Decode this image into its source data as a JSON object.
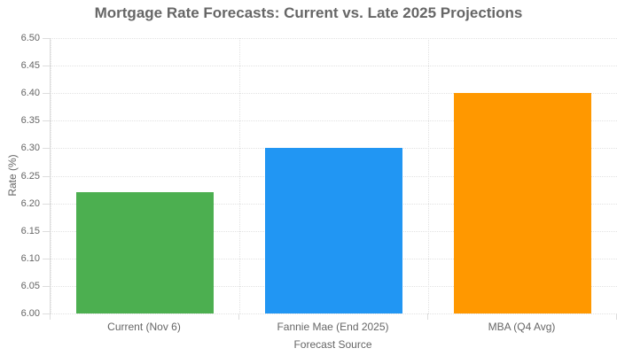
{
  "chart_data": {
    "type": "bar",
    "title": "Mortgage Rate Forecasts: Current vs. Late 2025 Projections",
    "xlabel": "Forecast Source",
    "ylabel": "Rate (%)",
    "categories": [
      "Current (Nov 6)",
      "Fannie Mae (End 2025)",
      "MBA (Q4 Avg)"
    ],
    "values": [
      6.22,
      6.3,
      6.4
    ],
    "bar_colors": [
      "#4caf50",
      "#2196f3",
      "#ff9800"
    ],
    "ylim": [
      6.0,
      6.5
    ],
    "ytick_step": 0.05,
    "ytick_labels": [
      "6.00",
      "6.05",
      "6.10",
      "6.15",
      "6.20",
      "6.25",
      "6.30",
      "6.35",
      "6.40",
      "6.45",
      "6.50"
    ],
    "grid": true,
    "legend": false
  },
  "colors": {
    "title_text": "#666666",
    "axis_text": "#666666",
    "gridline": "#e2e2e2",
    "axis_line": "#dddddd",
    "background": "#ffffff"
  }
}
